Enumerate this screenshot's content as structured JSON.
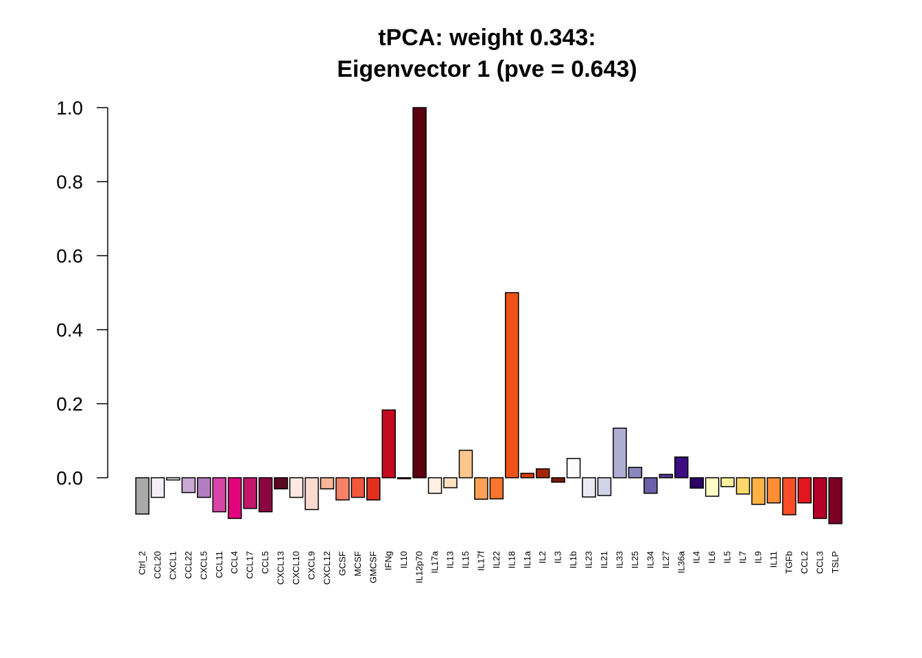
{
  "chart_data": {
    "type": "bar",
    "title": [
      "tPCA: weight 0.343:",
      "Eigenvector 1 (pve = 0.643)"
    ],
    "xlabel": "",
    "ylabel": "",
    "ylim": [
      -0.124,
      1.0
    ],
    "yticks": [
      "0.0",
      "0.2",
      "0.4",
      "0.6",
      "0.8",
      "1.0"
    ],
    "grid": false,
    "legend": "none",
    "categories": [
      "Ctrl_2",
      "CCL20",
      "CXCL1",
      "CCL22",
      "CXCL5",
      "CCL11",
      "CCL4",
      "CCL17",
      "CCL5",
      "CXCL13",
      "CXCL10",
      "CXCL9",
      "CXCL12",
      "GCSF",
      "MCSF",
      "GMCSF",
      "IFNg",
      "IL10",
      "IL12p70",
      "IL17a",
      "IL13",
      "IL15",
      "IL17f",
      "IL22",
      "IL18",
      "IL1a",
      "IL2",
      "IL3",
      "IL1b",
      "IL23",
      "IL21",
      "IL33",
      "IL25",
      "IL34",
      "IL27",
      "IL36a",
      "IL4",
      "IL6",
      "IL5",
      "IL7",
      "IL9",
      "IL11",
      "TGFb",
      "CCL2",
      "CCL3",
      "TSLP"
    ],
    "values": [
      -0.098,
      -0.053,
      -0.006,
      -0.04,
      -0.053,
      -0.092,
      -0.11,
      -0.083,
      -0.092,
      -0.03,
      -0.053,
      -0.086,
      -0.03,
      -0.06,
      -0.053,
      -0.06,
      0.183,
      -0.002,
      1.0,
      -0.042,
      -0.027,
      0.074,
      -0.058,
      -0.057,
      0.5,
      0.012,
      0.024,
      -0.012,
      0.052,
      -0.052,
      -0.048,
      0.134,
      0.028,
      -0.042,
      0.009,
      0.056,
      -0.028,
      -0.05,
      -0.024,
      -0.044,
      -0.072,
      -0.068,
      -0.1,
      -0.068,
      -0.11,
      -0.124
    ],
    "colors": [
      "#a9a9a9",
      "#f3eef6",
      "#ffffff",
      "#cba8d4",
      "#b17ec0",
      "#d844a6",
      "#e2057d",
      "#c2176b",
      "#8b0640",
      "#5b0a22",
      "#fde9e0",
      "#fddad0",
      "#fcb69b",
      "#f7826a",
      "#f0573f",
      "#e0311f",
      "#c30a1e",
      "#8b0000",
      "#5a0011",
      "#fff1e4",
      "#ffe0c2",
      "#fdc68e",
      "#fda059",
      "#f9752d",
      "#f05317",
      "#d53b06",
      "#a32602",
      "#7b1b03",
      "#fcfbfd",
      "#ebe9f3",
      "#d3d3e8",
      "#aeaed5",
      "#8b86bd",
      "#6b5fa7",
      "#533b96",
      "#3c0b80",
      "#2d0464",
      "#ffffc7",
      "#fff0a0",
      "#fed86c",
      "#feb243",
      "#fd8e37",
      "#fc4d29",
      "#e3151e",
      "#b60026",
      "#7b0025"
    ]
  }
}
